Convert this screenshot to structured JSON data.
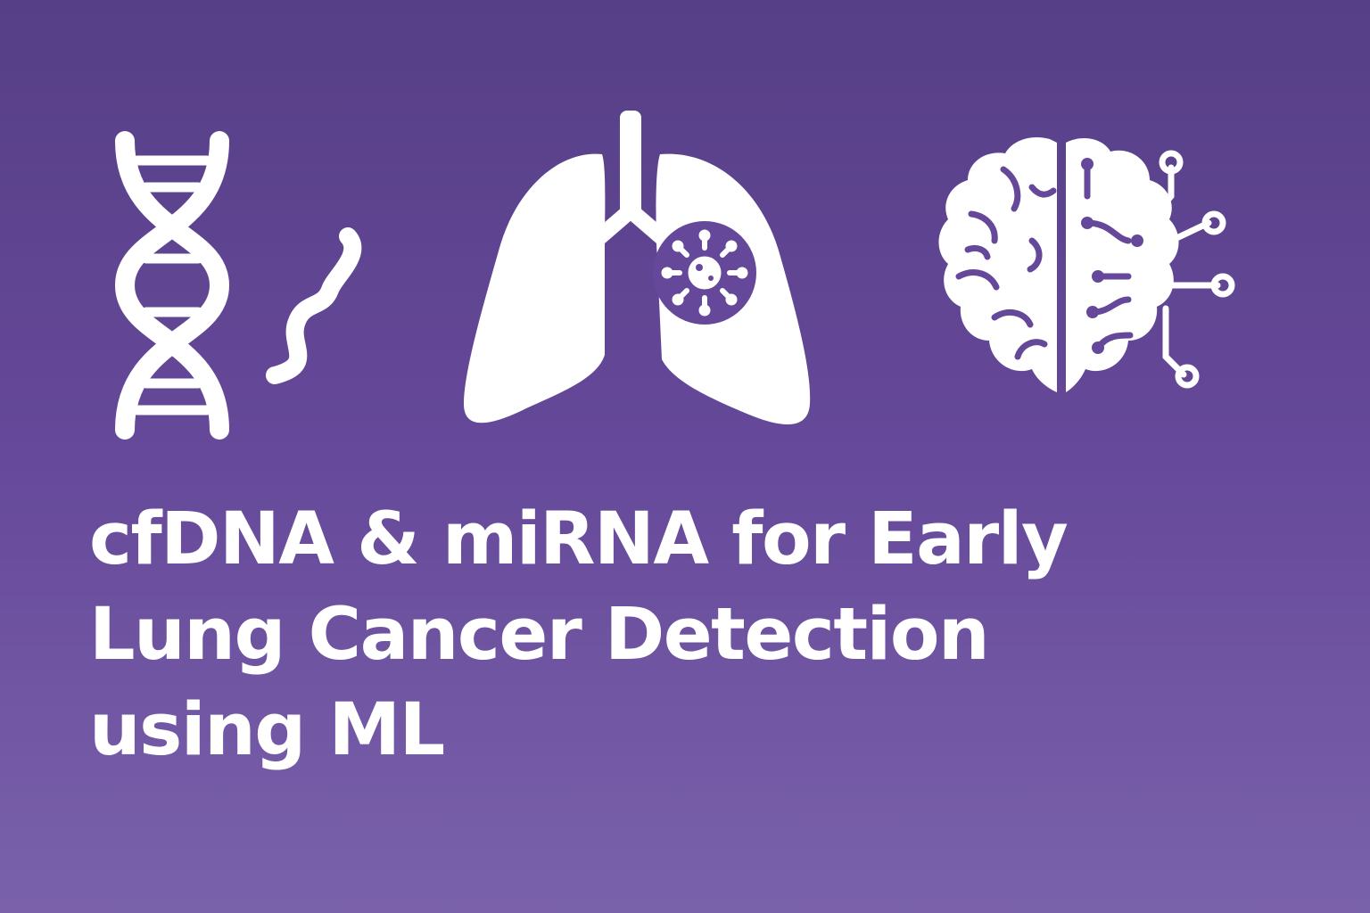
{
  "colors": {
    "background_top": "#563f86",
    "background_bottom": "#7a62ab",
    "foreground": "#ffffff"
  },
  "icons": [
    "dna-helix-icon",
    "mirna-strand-icon",
    "lungs-with-tumor-icon",
    "ai-brain-circuit-icon"
  ],
  "title": {
    "line1": "cfDNA & miRNA for Early",
    "line2": "Lung Cancer Detection",
    "line3": "using ML"
  }
}
